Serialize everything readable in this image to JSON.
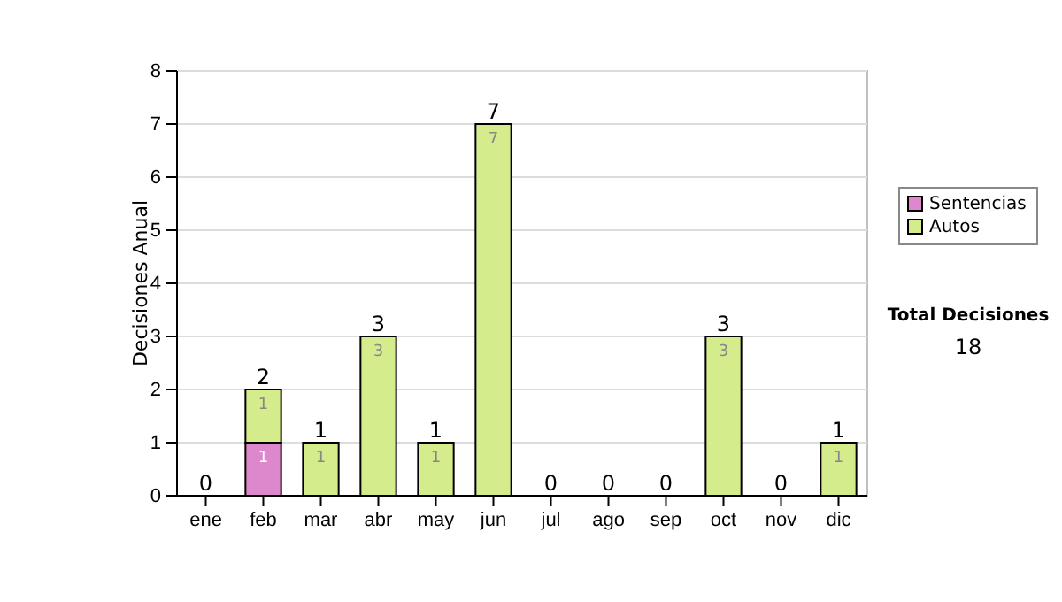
{
  "chart_data": {
    "type": "bar",
    "stacked": true,
    "ylabel": "Decisiones Anual",
    "categories": [
      "ene",
      "feb",
      "mar",
      "abr",
      "may",
      "jun",
      "jul",
      "ago",
      "sep",
      "oct",
      "nov",
      "dic"
    ],
    "series": [
      {
        "name": "Sentencias",
        "color": "#dd88cc",
        "values": [
          0,
          1,
          0,
          0,
          0,
          0,
          0,
          0,
          0,
          0,
          0,
          0
        ],
        "value_labels": [
          null,
          "1",
          null,
          null,
          null,
          null,
          null,
          null,
          null,
          null,
          null,
          null
        ]
      },
      {
        "name": "Autos",
        "color": "#d4ec8c",
        "values": [
          0,
          1,
          1,
          3,
          1,
          7,
          0,
          0,
          0,
          3,
          0,
          1
        ],
        "value_labels": [
          null,
          "1",
          "1",
          "3",
          "1",
          "7",
          null,
          null,
          null,
          "3",
          null,
          "1"
        ]
      }
    ],
    "totals": [
      "0",
      "2",
      "1",
      "3",
      "1",
      "7",
      "0",
      "0",
      "0",
      "3",
      "0",
      "1"
    ],
    "ylim": [
      0,
      8
    ],
    "yticks": [
      0,
      1,
      2,
      3,
      4,
      5,
      6,
      7,
      8
    ],
    "grid": "y",
    "legend": "right",
    "annotations": [
      "Total Decisiones",
      "18"
    ]
  }
}
